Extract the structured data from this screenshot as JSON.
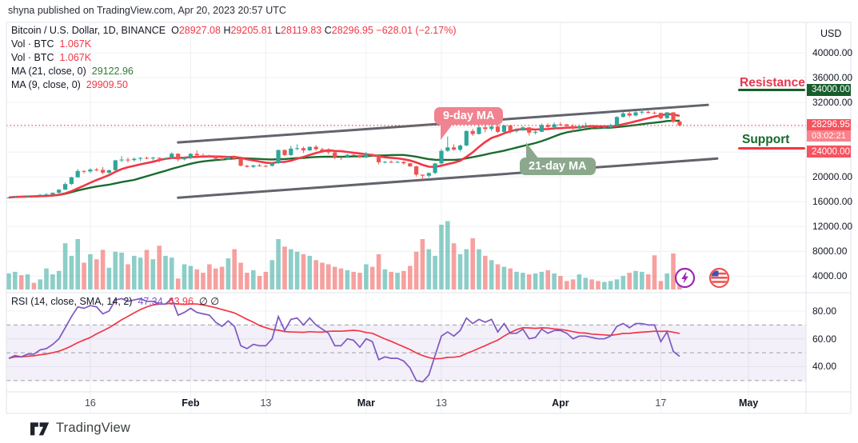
{
  "attribution": "shyna published on TradingView.com, Apr 20, 2023 20:57 UTC",
  "footer": {
    "brand": "TradingView"
  },
  "legend": {
    "symbol": "Bitcoin / U.S. Dollar, 1D, BINANCE",
    "ohlc": {
      "o_label": "O",
      "o": "28927.08",
      "h_label": "H",
      "h": "29205.81",
      "l_label": "L",
      "l": "28119.83",
      "c_label": "C",
      "c": "28296.95",
      "change": "−628.01 (−2.17%)"
    },
    "vol_rows": [
      {
        "label": "Vol · BTC",
        "value": "1.067K"
      },
      {
        "label": "Vol · BTC",
        "value": "1.067K"
      }
    ],
    "ma_rows": [
      {
        "label": "MA (21, close, 0)",
        "value": "29122.96"
      },
      {
        "label": "MA (9, close, 0)",
        "value": "29909.50"
      }
    ]
  },
  "rsi_legend": {
    "label": "RSI (14, close, SMA, 14, 2)",
    "value1": "47.34",
    "value2": "63.96",
    "suffix": "∅  ∅"
  },
  "annotations": {
    "resistance": {
      "label": "Resistance",
      "level_label": "34000.00",
      "level": 34000
    },
    "support": {
      "label": "Support",
      "level_label": "24000.00",
      "level": 24000
    },
    "ma9_callout": "9-day MA",
    "ma21_callout": "21-day MA",
    "last_price_label": "28296.95",
    "last_price": 28296.95,
    "countdown": "03:02:21"
  },
  "price_axis": {
    "currency": "USD",
    "ticks": [
      {
        "label": "40000.00",
        "value": 40000
      },
      {
        "label": "36000.00",
        "value": 36000
      },
      {
        "label": "32000.00",
        "value": 32000
      },
      {
        "label": "20000.00",
        "value": 20000
      },
      {
        "label": "16000.00",
        "value": 16000
      },
      {
        "label": "12000.00",
        "value": 12000
      },
      {
        "label": "8000.00",
        "value": 8000
      },
      {
        "label": "4000.00",
        "value": 4000
      }
    ]
  },
  "rsi_axis": {
    "ticks": [
      {
        "label": "80.00",
        "value": 80
      },
      {
        "label": "60.00",
        "value": 60
      },
      {
        "label": "40.00",
        "value": 40
      }
    ]
  },
  "time_axis": {
    "ticks": [
      {
        "label": "16",
        "index": 13,
        "bold": false
      },
      {
        "label": "Feb",
        "index": 29,
        "bold": true
      },
      {
        "label": "13",
        "index": 41,
        "bold": false
      },
      {
        "label": "Mar",
        "index": 57,
        "bold": true
      },
      {
        "label": "13",
        "index": 69,
        "bold": false
      },
      {
        "label": "Apr",
        "index": 88,
        "bold": true
      },
      {
        "label": "17",
        "index": 104,
        "bold": false
      },
      {
        "label": "May",
        "index": 118,
        "bold": true
      }
    ]
  },
  "colors": {
    "up": "#2fa69a",
    "down": "#ef5350",
    "vol_up": "rgba(47,166,154,0.55)",
    "vol_down": "rgba(239,83,80,0.55)",
    "ma9": "#f23645",
    "ma21": "#1b6b2f",
    "rsi": "#7e57c2",
    "rsi_sma": "#f23645",
    "band_fill": "rgba(126,87,194,0.09)",
    "band_dash": "#9b9eaa",
    "grid": "#eef0f4",
    "border": "#e0e3eb",
    "channel": "#51545c",
    "last_price_line": "#f23645"
  },
  "chart_data": [
    {
      "type": "candlestick",
      "title": "Bitcoin / U.S. Dollar, 1D, BINANCE",
      "date_range": [
        "2023-01-03",
        "2023-04-20"
      ],
      "ylabel": "USD",
      "visible_price_range": [
        1500,
        45000
      ],
      "grid": true,
      "candles": [
        [
          16620,
          16700,
          16560,
          16675
        ],
        [
          16675,
          16880,
          16650,
          16850
        ],
        [
          16850,
          16990,
          16790,
          16831
        ],
        [
          16831,
          17040,
          16800,
          16950
        ],
        [
          16950,
          17010,
          16880,
          16943
        ],
        [
          16943,
          17190,
          16910,
          17128
        ],
        [
          17128,
          17400,
          17100,
          17178
        ],
        [
          17178,
          17500,
          17150,
          17440
        ],
        [
          17440,
          18000,
          17320,
          17943
        ],
        [
          17943,
          19100,
          17900,
          18846
        ],
        [
          18846,
          20000,
          18700,
          19930
        ],
        [
          19930,
          21250,
          19890,
          20955
        ],
        [
          20955,
          21050,
          20550,
          20871
        ],
        [
          20871,
          21400,
          20600,
          21185
        ],
        [
          21185,
          21450,
          20900,
          21134
        ],
        [
          21134,
          21600,
          20400,
          20677
        ],
        [
          20677,
          21200,
          20500,
          21076
        ],
        [
          21076,
          22750,
          21000,
          22667
        ],
        [
          22667,
          23350,
          22400,
          22783
        ],
        [
          22783,
          23100,
          22300,
          22707
        ],
        [
          22707,
          23150,
          22500,
          22916
        ],
        [
          22916,
          23180,
          22550,
          23060
        ],
        [
          23060,
          23300,
          22850,
          23009
        ],
        [
          23009,
          23250,
          22650,
          23074
        ],
        [
          23074,
          23150,
          22350,
          23018
        ],
        [
          23018,
          23100,
          22880,
          23027
        ],
        [
          23027,
          23960,
          22970,
          23742
        ],
        [
          23742,
          23800,
          22500,
          22827
        ],
        [
          22827,
          23250,
          22650,
          23125
        ],
        [
          23125,
          23800,
          22880,
          23723
        ],
        [
          23723,
          24250,
          23400,
          23464
        ],
        [
          23464,
          23780,
          23230,
          23431
        ],
        [
          23431,
          23590,
          23150,
          23328
        ],
        [
          23328,
          23430,
          22750,
          22933
        ],
        [
          22933,
          23160,
          22650,
          22760
        ],
        [
          22760,
          23350,
          22730,
          23236
        ],
        [
          23236,
          23440,
          22700,
          22939
        ],
        [
          22939,
          23010,
          21700,
          21791
        ],
        [
          21791,
          21940,
          21480,
          21625
        ],
        [
          21625,
          21930,
          21430,
          21862
        ],
        [
          21862,
          22090,
          21630,
          21781
        ],
        [
          21781,
          21890,
          21530,
          21774
        ],
        [
          21774,
          22320,
          21660,
          22199
        ],
        [
          22199,
          24380,
          22070,
          24324
        ],
        [
          24324,
          24450,
          23350,
          23517
        ],
        [
          23517,
          24990,
          23380,
          24565
        ],
        [
          24565,
          25250,
          24290,
          24632
        ],
        [
          24632,
          24870,
          23850,
          24271
        ],
        [
          24271,
          24900,
          24180,
          24840
        ],
        [
          24840,
          25130,
          24220,
          24452
        ],
        [
          24452,
          24720,
          23860,
          24182
        ],
        [
          24182,
          24600,
          23620,
          23940
        ],
        [
          23940,
          24130,
          22850,
          23186
        ],
        [
          23186,
          23220,
          22720,
          23157
        ],
        [
          23157,
          23690,
          23070,
          23554
        ],
        [
          23554,
          23880,
          23330,
          23492
        ],
        [
          23492,
          23600,
          23020,
          23141
        ],
        [
          23141,
          23990,
          23020,
          23628
        ],
        [
          23628,
          23790,
          23190,
          23465
        ],
        [
          23465,
          23480,
          22020,
          22354
        ],
        [
          22354,
          22570,
          22180,
          22435
        ],
        [
          22435,
          22650,
          22230,
          22410
        ],
        [
          22410,
          22580,
          22260,
          22410
        ],
        [
          22410,
          22560,
          21950,
          22197
        ],
        [
          22197,
          22270,
          21590,
          21705
        ],
        [
          21705,
          21800,
          20050,
          20360
        ],
        [
          20360,
          20370,
          19549,
          20187
        ],
        [
          20187,
          20680,
          19900,
          20632
        ],
        [
          20632,
          22250,
          20450,
          22163
        ],
        [
          22163,
          24500,
          21950,
          24197
        ],
        [
          24197,
          26510,
          24050,
          24750
        ],
        [
          24750,
          25250,
          24220,
          24375
        ],
        [
          24375,
          25190,
          24130,
          25057
        ],
        [
          25057,
          27480,
          24930,
          27395
        ],
        [
          27395,
          27750,
          26600,
          26907
        ],
        [
          26907,
          28390,
          26850,
          27972
        ],
        [
          27972,
          28470,
          27180,
          27717
        ],
        [
          27717,
          28440,
          27400,
          28105
        ],
        [
          28105,
          28750,
          27050,
          27250
        ],
        [
          27250,
          28370,
          27120,
          28295
        ],
        [
          28295,
          28370,
          27000,
          27454
        ],
        [
          27454,
          27790,
          27150,
          27475
        ],
        [
          27475,
          28190,
          27440,
          27975
        ],
        [
          27975,
          28020,
          26680,
          27124
        ],
        [
          27124,
          27480,
          26870,
          27268
        ],
        [
          27268,
          28610,
          27250,
          28348
        ],
        [
          28348,
          28650,
          27720,
          28033
        ],
        [
          28033,
          28770,
          27550,
          28465
        ],
        [
          28465,
          28810,
          28190,
          28456
        ],
        [
          28456,
          28530,
          27870,
          28199
        ],
        [
          28199,
          28480,
          27250,
          27790
        ],
        [
          27790,
          28430,
          27670,
          28168
        ],
        [
          28168,
          28780,
          27830,
          28173
        ],
        [
          28173,
          28180,
          27740,
          28044
        ],
        [
          28044,
          28120,
          27800,
          27925
        ],
        [
          27925,
          28170,
          27780,
          27957
        ],
        [
          27957,
          28540,
          27880,
          28333
        ],
        [
          28333,
          29770,
          28190,
          29652
        ],
        [
          29652,
          30510,
          29580,
          30235
        ],
        [
          30235,
          30500,
          29620,
          29893
        ],
        [
          29893,
          30600,
          29700,
          30400
        ],
        [
          30400,
          31000,
          30050,
          30485
        ],
        [
          30485,
          30660,
          30200,
          30318
        ],
        [
          30318,
          30560,
          30130,
          30315
        ],
        [
          30315,
          30330,
          29270,
          29450
        ],
        [
          29450,
          30420,
          29350,
          30397
        ],
        [
          30397,
          30420,
          28620,
          28927
        ],
        [
          28927,
          29206,
          28120,
          28297
        ]
      ],
      "overlays": [
        {
          "name": "MA(9)",
          "period": 9,
          "last_value": 29909.5
        },
        {
          "name": "MA(21)",
          "period": 21,
          "last_value": 29122.96
        }
      ],
      "channel_lines": [
        {
          "from_index": 27,
          "from_price": 25550,
          "to_index": 111.5,
          "to_price": 31600
        },
        {
          "from_index": 27,
          "from_price": 16650,
          "to_index": 113,
          "to_price": 22950
        }
      ],
      "levels": {
        "resistance": 34000,
        "support": 24000,
        "last_close": 28296.95
      }
    },
    {
      "type": "bar",
      "name": "Volume BTC (K, est.)",
      "values": [
        89,
        98,
        79,
        84,
        37,
        56,
        117,
        84,
        103,
        257,
        187,
        280,
        149,
        196,
        168,
        220,
        121,
        210,
        205,
        140,
        187,
        177,
        220,
        168,
        243,
        187,
        177,
        61,
        140,
        131,
        112,
        93,
        140,
        117,
        126,
        173,
        224,
        149,
        93,
        107,
        75,
        98,
        163,
        280,
        238,
        224,
        210,
        196,
        187,
        163,
        149,
        140,
        126,
        117,
        107,
        98,
        93,
        140,
        126,
        196,
        112,
        98,
        93,
        103,
        131,
        210,
        280,
        224,
        187,
        360,
        380,
        257,
        196,
        224,
        285,
        224,
        187,
        163,
        140,
        126,
        117,
        98,
        93,
        84,
        89,
        98,
        107,
        89,
        75,
        47,
        56,
        84,
        65,
        56,
        47,
        42,
        47,
        56,
        75,
        93,
        103,
        98,
        84,
        190,
        47,
        89,
        200,
        90
      ]
    },
    {
      "type": "line",
      "name": "RSI (14)",
      "ylim": [
        22,
        94
      ],
      "band": [
        30,
        70
      ],
      "sma_period": 14,
      "values": [
        46,
        48,
        47,
        49,
        49,
        52,
        53,
        56,
        60,
        68,
        76,
        83,
        82,
        84,
        83,
        78,
        80,
        88,
        89,
        87,
        88,
        89,
        87,
        87,
        85,
        85,
        89,
        77,
        79,
        82,
        79,
        78,
        77,
        72,
        69,
        73,
        69,
        55,
        53,
        56,
        55,
        55,
        60,
        76,
        66,
        74,
        75,
        70,
        75,
        70,
        67,
        64,
        55,
        55,
        60,
        59,
        54,
        60,
        58,
        45,
        47,
        46,
        46,
        44,
        39,
        30,
        29,
        34,
        48,
        62,
        65,
        62,
        66,
        75,
        71,
        74,
        72,
        74,
        65,
        71,
        64,
        64,
        67,
        60,
        61,
        67,
        64,
        66,
        66,
        64,
        60,
        62,
        62,
        61,
        60,
        60,
        62,
        69,
        71,
        68,
        71,
        71,
        70,
        70,
        58,
        65,
        51,
        47.34
      ]
    }
  ]
}
